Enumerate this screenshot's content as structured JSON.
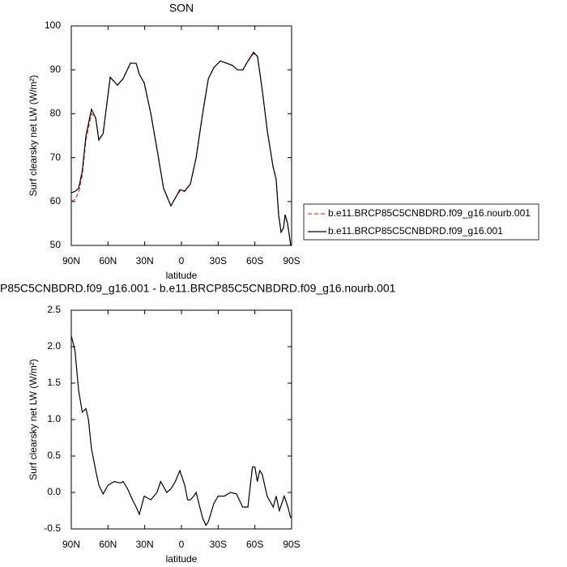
{
  "chart_data": [
    {
      "type": "line",
      "title": "SON",
      "xlabel": "latitude",
      "ylabel": "Surf clearsky net LW (W/m²)",
      "x": [
        90,
        87,
        84,
        81,
        78,
        73.5,
        70,
        67.5,
        64,
        58.2,
        52.3,
        47.6,
        41.7,
        37,
        34.4,
        30.4,
        25,
        20,
        14.6,
        8.6,
        4.6,
        1.3,
        -2.7,
        -7.3,
        -12,
        -17.3,
        -22,
        -26.5,
        -31.8,
        -37,
        -41.7,
        -45.7,
        -50.3,
        -54.3,
        -58.9,
        -62.2,
        -66.2,
        -70.2,
        -74.8,
        -77.4,
        -79.4,
        -81.4,
        -83.4,
        -84.7,
        -86.7,
        -89.3
      ],
      "series": [
        {
          "name": "b.e11.BRCP85C5CNBDRD.f09_g16.nourb.001",
          "color": "#e8302a",
          "dash": true,
          "values": [
            60,
            60.5,
            62,
            66,
            74,
            80,
            79,
            74,
            75.5,
            88.3,
            86.5,
            88,
            91.5,
            91.5,
            89,
            87,
            80,
            72,
            63,
            59,
            61,
            62.4,
            62.3,
            64,
            70,
            80,
            88,
            90.5,
            92,
            91.5,
            91,
            90,
            90,
            92,
            93.7,
            93,
            85,
            76,
            68,
            65,
            57,
            53,
            54,
            57,
            55,
            50
          ]
        },
        {
          "name": "b.e11.BRCP85C5CNBDRD.f09_g16.001",
          "color": "#000000",
          "dash": false,
          "values": [
            62,
            62.3,
            63,
            67,
            75,
            81,
            79,
            74,
            75.5,
            88.3,
            86.5,
            88,
            91.5,
            91.5,
            89,
            87,
            80,
            72,
            63,
            59,
            61,
            62.7,
            62.4,
            64,
            70,
            80,
            88,
            90.5,
            92,
            91.5,
            91,
            90,
            90,
            92,
            94,
            93,
            85,
            76,
            68,
            65,
            57,
            53,
            54,
            57,
            55,
            50
          ]
        }
      ],
      "xlim": [
        90,
        -90
      ],
      "xticks": [
        {
          "value": 90,
          "label": "90N"
        },
        {
          "value": 60,
          "label": "60N"
        },
        {
          "value": 30,
          "label": "30N"
        },
        0,
        {
          "value": -30,
          "label": "30S"
        },
        {
          "value": -60,
          "label": "60S"
        },
        {
          "value": -90,
          "label": "90S"
        }
      ],
      "ylim": [
        50,
        100
      ],
      "yticks": [
        50,
        60,
        70,
        80,
        90,
        100
      ],
      "legend": "right"
    },
    {
      "type": "line",
      "title": "P85C5CNBDRD.f09_g16.001 - b.e11.BRCP85C5CNBDRD.f09_g16.nourb.001",
      "xlabel": "latitude",
      "ylabel": "Surf clearsky net LW (W/m²)",
      "x": [
        90,
        87,
        84,
        81,
        78,
        76,
        73.5,
        70,
        67.5,
        64,
        60,
        55,
        50,
        47.6,
        44,
        40,
        37,
        34.4,
        30.4,
        25,
        20,
        17,
        14.6,
        12,
        8.6,
        5,
        1.3,
        -2.7,
        -5,
        -7.3,
        -10,
        -12,
        -15,
        -17.3,
        -20,
        -22,
        -26.5,
        -30,
        -35,
        -40,
        -45,
        -50,
        -54.3,
        -58,
        -60,
        -62,
        -64,
        -66,
        -70,
        -75,
        -77.4,
        -80,
        -84,
        -87,
        -89.3
      ],
      "series": [
        {
          "name": null,
          "color": "#000000",
          "dash": false,
          "values": [
            2.15,
            1.95,
            1.4,
            1.1,
            1.15,
            1.0,
            0.6,
            0.3,
            0.1,
            -0.02,
            0.1,
            0.15,
            0.13,
            0.15,
            0.05,
            -0.1,
            -0.2,
            -0.3,
            -0.05,
            -0.1,
            0.0,
            0.15,
            0.08,
            0.0,
            0.05,
            0.15,
            0.3,
            0.1,
            -0.1,
            -0.1,
            -0.05,
            0.0,
            -0.2,
            -0.35,
            -0.45,
            -0.4,
            -0.15,
            -0.05,
            -0.05,
            0.0,
            -0.02,
            -0.2,
            -0.2,
            0.35,
            0.35,
            0.15,
            0.3,
            0.25,
            -0.05,
            -0.2,
            -0.05,
            -0.25,
            -0.05,
            -0.2,
            -0.35
          ]
        }
      ],
      "xlim": [
        90,
        -90
      ],
      "xticks": [
        {
          "value": 90,
          "label": "90N"
        },
        {
          "value": 60,
          "label": "60N"
        },
        {
          "value": 30,
          "label": "30N"
        },
        0,
        {
          "value": -30,
          "label": "30S"
        },
        {
          "value": -60,
          "label": "60S"
        },
        {
          "value": -90,
          "label": "90S"
        }
      ],
      "ylim": [
        -0.5,
        2.5
      ],
      "yticks": [
        -0.5,
        {
          "value": 0,
          "label": "0.0"
        },
        0.5,
        {
          "value": 1,
          "label": "1.0"
        },
        1.5,
        {
          "value": 2,
          "label": "2.0"
        },
        2.5
      ]
    }
  ]
}
